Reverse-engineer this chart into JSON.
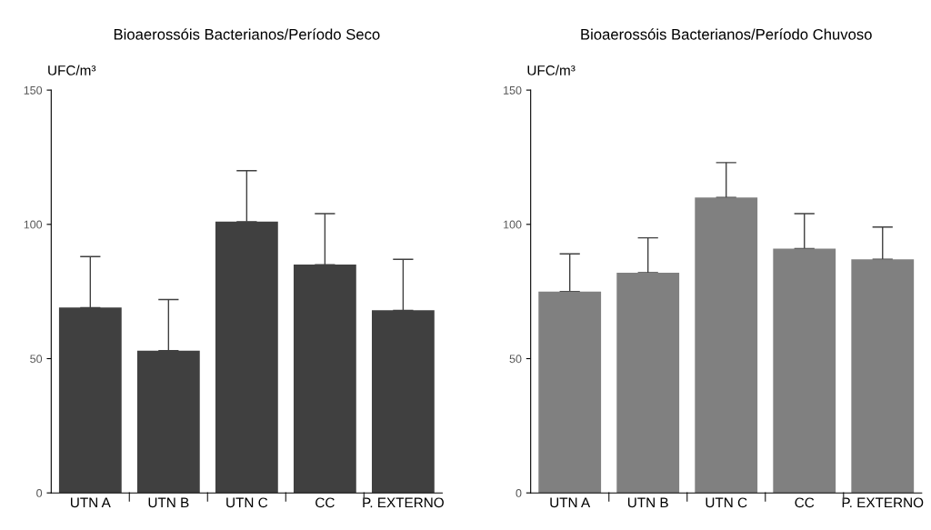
{
  "chart_data": [
    {
      "type": "bar",
      "title": "Bioaerossóis Bacterianos/Período Seco",
      "ylabel": "UFC/m³",
      "categories": [
        "UTN A",
        "UTN B",
        "UTN C",
        "CC",
        "P. EXTERNO"
      ],
      "values": [
        69,
        53,
        101,
        85,
        68
      ],
      "errors": [
        [
          69,
          88
        ],
        [
          53,
          72
        ],
        [
          101,
          120
        ],
        [
          85,
          104
        ],
        [
          68,
          87
        ]
      ],
      "color": "#404040",
      "ylim": [
        0,
        150
      ],
      "yticks": [
        0,
        50,
        100,
        150
      ],
      "grid": false
    },
    {
      "type": "bar",
      "title": "Bioaerossóis Bacterianos/Período Chuvoso",
      "ylabel": "UFC/m³",
      "categories": [
        "UTN A",
        "UTN B",
        "UTN C",
        "CC",
        "P. EXTERNO"
      ],
      "values": [
        75,
        82,
        110,
        91,
        87
      ],
      "errors": [
        [
          75,
          89
        ],
        [
          82,
          95
        ],
        [
          110,
          123
        ],
        [
          91,
          104
        ],
        [
          87,
          99
        ]
      ],
      "color": "#808080",
      "ylim": [
        0,
        150
      ],
      "yticks": [
        0,
        50,
        100,
        150
      ],
      "grid": false
    }
  ]
}
